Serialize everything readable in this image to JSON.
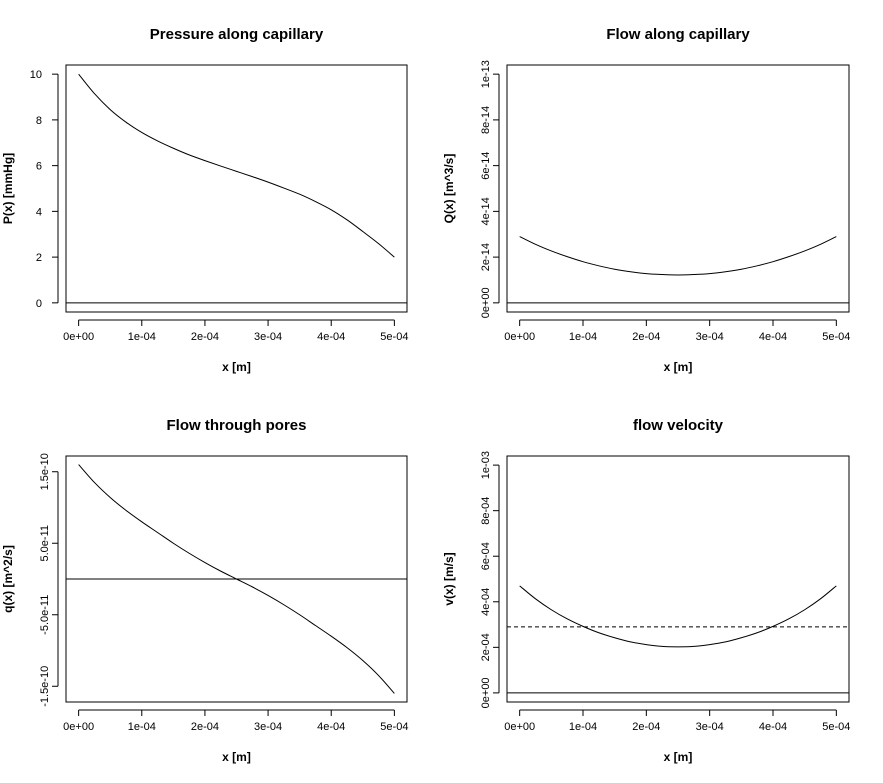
{
  "chart_data": [
    {
      "type": "line",
      "title": "Pressure along capillary",
      "xlabel": "x [m]",
      "ylabel": "P(x) [mmHg]",
      "xlim": [
        -2e-05,
        0.00052
      ],
      "ylim": [
        -0.4,
        10.4
      ],
      "x_ticks": [
        0,
        0.0001,
        0.0002,
        0.0003,
        0.0004,
        0.0005
      ],
      "x_tick_labels": [
        "0e+00",
        "1e-04",
        "2e-04",
        "3e-04",
        "4e-04",
        "5e-04"
      ],
      "y_ticks": [
        0,
        2,
        4,
        6,
        8,
        10
      ],
      "y_tick_labels": [
        "0",
        "2",
        "4",
        "6",
        "8",
        "10"
      ],
      "y_tick_rotated": false,
      "grid": false,
      "series": [
        {
          "style": "solid",
          "x": [
            0,
            2.5e-05,
            5e-05,
            7.5e-05,
            0.0001,
            0.000125,
            0.00015,
            0.000175,
            0.0002,
            0.000225,
            0.00025,
            0.000275,
            0.0003,
            0.000325,
            0.00035,
            0.000375,
            0.0004,
            0.000425,
            0.00045,
            0.000475,
            0.0005
          ],
          "y": [
            10.0,
            9.15,
            8.45,
            7.9,
            7.45,
            7.08,
            6.76,
            6.47,
            6.22,
            5.98,
            5.75,
            5.52,
            5.28,
            5.02,
            4.75,
            4.43,
            4.07,
            3.63,
            3.12,
            2.59,
            2.0
          ]
        }
      ],
      "hlines": [
        {
          "y": 0,
          "style": "solid"
        }
      ]
    },
    {
      "type": "line",
      "title": "Flow along capillary",
      "xlabel": "x [m]",
      "ylabel": "Q(x) [m^3/s]",
      "xlim": [
        -2e-05,
        0.00052
      ],
      "ylim": [
        -4e-15,
        1.04e-13
      ],
      "x_ticks": [
        0,
        0.0001,
        0.0002,
        0.0003,
        0.0004,
        0.0005
      ],
      "x_tick_labels": [
        "0e+00",
        "1e-04",
        "2e-04",
        "3e-04",
        "4e-04",
        "5e-04"
      ],
      "y_ticks": [
        0,
        2e-14,
        4e-14,
        6e-14,
        8e-14,
        1e-13
      ],
      "y_tick_labels": [
        "0e+00",
        "2e-14",
        "4e-14",
        "6e-14",
        "8e-14",
        "1e-13"
      ],
      "y_tick_rotated": true,
      "grid": false,
      "series": [
        {
          "style": "solid",
          "x": [
            0,
            2.5e-05,
            5e-05,
            7.5e-05,
            0.0001,
            0.000125,
            0.00015,
            0.000175,
            0.0002,
            0.000225,
            0.00025,
            0.000275,
            0.0003,
            0.000325,
            0.00035,
            0.000375,
            0.0004,
            0.000425,
            0.00045,
            0.000475,
            0.0005
          ],
          "y": [
            2.9e-14,
            2.56e-14,
            2.27e-14,
            2.02e-14,
            1.8e-14,
            1.62e-14,
            1.47e-14,
            1.36e-14,
            1.28e-14,
            1.24e-14,
            1.22e-14,
            1.24e-14,
            1.28e-14,
            1.36e-14,
            1.47e-14,
            1.62e-14,
            1.8e-14,
            2.02e-14,
            2.27e-14,
            2.56e-14,
            2.9e-14
          ]
        }
      ],
      "hlines": [
        {
          "y": 0,
          "style": "solid"
        }
      ]
    },
    {
      "type": "line",
      "title": "Flow through pores",
      "xlabel": "x [m]",
      "ylabel": "q(x) [m^2/s]",
      "xlim": [
        -2e-05,
        0.00052
      ],
      "ylim": [
        -1.72e-10,
        1.72e-10
      ],
      "x_ticks": [
        0,
        0.0001,
        0.0002,
        0.0003,
        0.0004,
        0.0005
      ],
      "x_tick_labels": [
        "0e+00",
        "1e-04",
        "2e-04",
        "3e-04",
        "4e-04",
        "5e-04"
      ],
      "y_ticks": [
        -1.5e-10,
        -5e-11,
        5e-11,
        1.5e-10
      ],
      "y_tick_labels": [
        "-1.5e-10",
        "-5.0e-11",
        "5.0e-11",
        "1.5e-10"
      ],
      "y_tick_rotated": true,
      "grid": false,
      "series": [
        {
          "style": "solid",
          "x": [
            0,
            2.5e-05,
            5e-05,
            7.5e-05,
            0.0001,
            0.000125,
            0.00015,
            0.000175,
            0.0002,
            0.000225,
            0.00025,
            0.000275,
            0.0003,
            0.000325,
            0.00035,
            0.000375,
            0.0004,
            0.000425,
            0.00045,
            0.000475,
            0.0005
          ],
          "y": [
            1.6e-10,
            1.35e-10,
            1.14e-10,
            9.6e-11,
            8e-11,
            6.5e-11,
            5e-11,
            3.6e-11,
            2.3e-11,
            1.1e-11,
            0,
            -1.1e-11,
            -2.3e-11,
            -3.6e-11,
            -5e-11,
            -6.5e-11,
            -8e-11,
            -9.6e-11,
            -1.14e-10,
            -1.35e-10,
            -1.6e-10
          ]
        }
      ],
      "hlines": [
        {
          "y": 0,
          "style": "solid"
        }
      ]
    },
    {
      "type": "line",
      "title": "flow velocity",
      "xlabel": "x [m]",
      "ylabel": "v(x) [m/s]",
      "xlim": [
        -2e-05,
        0.00052
      ],
      "ylim": [
        -4e-05,
        0.00104
      ],
      "x_ticks": [
        0,
        0.0001,
        0.0002,
        0.0003,
        0.0004,
        0.0005
      ],
      "x_tick_labels": [
        "0e+00",
        "1e-04",
        "2e-04",
        "3e-04",
        "4e-04",
        "5e-04"
      ],
      "y_ticks": [
        0,
        0.0002,
        0.0004,
        0.0006,
        0.0008,
        0.001
      ],
      "y_tick_labels": [
        "0e+00",
        "2e-04",
        "4e-04",
        "6e-04",
        "8e-04",
        "1e-03"
      ],
      "y_tick_rotated": true,
      "grid": false,
      "series": [
        {
          "style": "solid",
          "x": [
            0,
            2.5e-05,
            5e-05,
            7.5e-05,
            0.0001,
            0.000125,
            0.00015,
            0.000175,
            0.0002,
            0.000225,
            0.00025,
            0.000275,
            0.0003,
            0.000325,
            0.00035,
            0.000375,
            0.0004,
            0.000425,
            0.00045,
            0.000475,
            0.0005
          ],
          "y": [
            0.00047,
            0.000413,
            0.000365,
            0.000325,
            0.000292,
            0.000264,
            0.000242,
            0.000224,
            0.000212,
            0.000204,
            0.000202,
            0.000204,
            0.000212,
            0.000224,
            0.000242,
            0.000264,
            0.000292,
            0.000325,
            0.000365,
            0.000413,
            0.00047
          ]
        }
      ],
      "hlines": [
        {
          "y": 0,
          "style": "solid"
        },
        {
          "y": 0.00029,
          "style": "dashed"
        }
      ]
    }
  ]
}
